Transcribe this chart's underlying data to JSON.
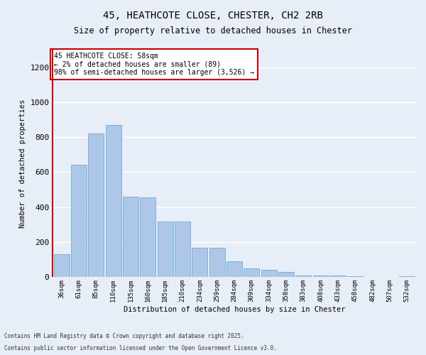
{
  "title_line1": "45, HEATHCOTE CLOSE, CHESTER, CH2 2RB",
  "title_line2": "Size of property relative to detached houses in Chester",
  "xlabel": "Distribution of detached houses by size in Chester",
  "ylabel": "Number of detached properties",
  "categories": [
    "36sqm",
    "61sqm",
    "85sqm",
    "110sqm",
    "135sqm",
    "160sqm",
    "185sqm",
    "210sqm",
    "234sqm",
    "259sqm",
    "284sqm",
    "309sqm",
    "334sqm",
    "358sqm",
    "383sqm",
    "408sqm",
    "433sqm",
    "458sqm",
    "482sqm",
    "507sqm",
    "532sqm"
  ],
  "values": [
    130,
    640,
    820,
    870,
    460,
    455,
    315,
    315,
    165,
    165,
    90,
    50,
    40,
    30,
    10,
    10,
    10,
    5,
    2,
    2,
    5
  ],
  "bar_color": "#aec6e8",
  "bar_edgecolor": "#6baed6",
  "vline_color": "#cc0000",
  "vline_x": -0.5,
  "annotation_text": "45 HEATHCOTE CLOSE: 58sqm\n← 2% of detached houses are smaller (89)\n98% of semi-detached houses are larger (3,526) →",
  "annotation_box_facecolor": "#ffffff",
  "annotation_box_edgecolor": "#cc0000",
  "ylim": [
    0,
    1300
  ],
  "yticks": [
    0,
    200,
    400,
    600,
    800,
    1000,
    1200
  ],
  "background_color": "#e8eef8",
  "grid_color": "#ffffff",
  "footnote1": "Contains HM Land Registry data © Crown copyright and database right 2025.",
  "footnote2": "Contains public sector information licensed under the Open Government Licence v3.0."
}
